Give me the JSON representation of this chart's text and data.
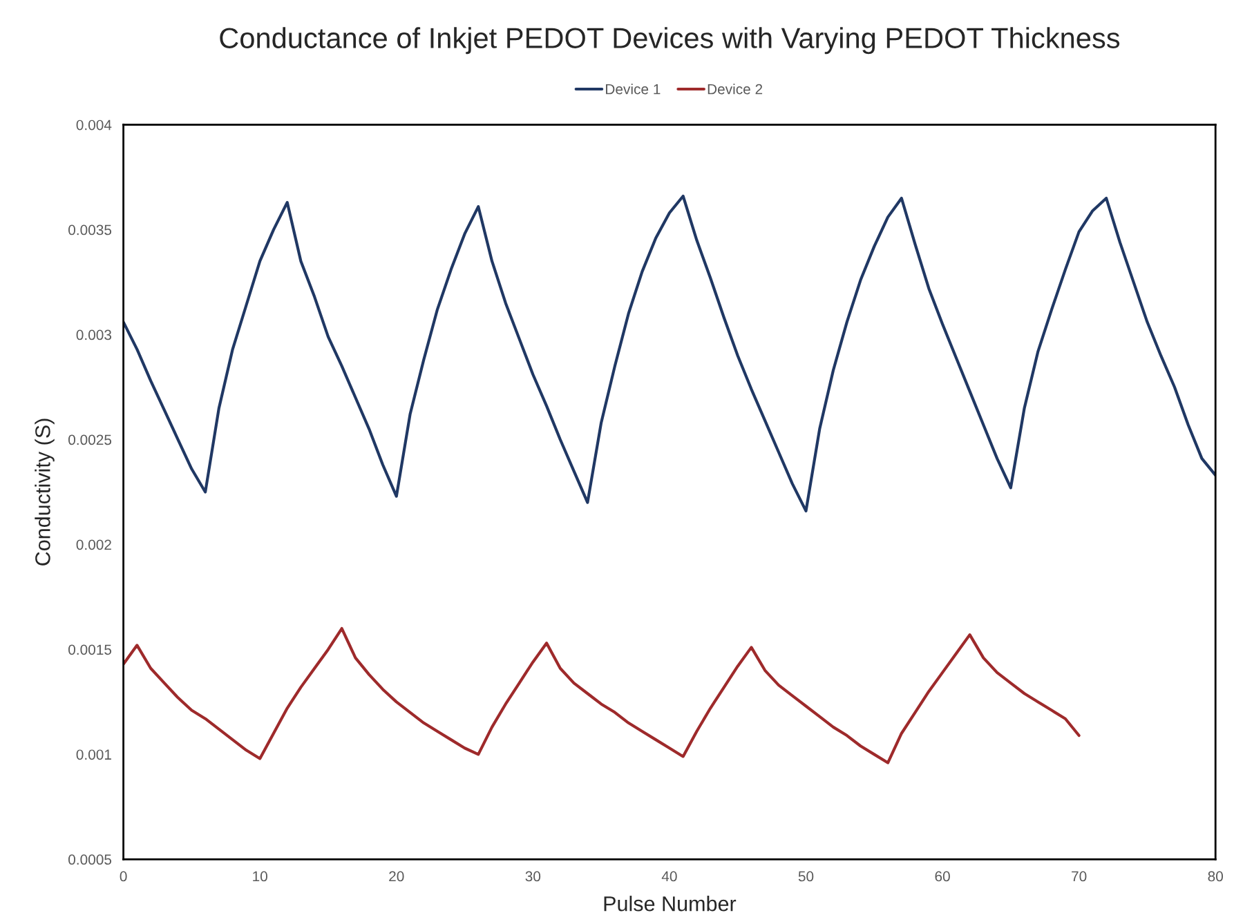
{
  "chart_data": {
    "type": "line",
    "title": "Conductance of Inkjet PEDOT Devices with Varying PEDOT Thickness",
    "xlabel": "Pulse Number",
    "ylabel": "Conductivity (S)",
    "xlim": [
      0,
      80
    ],
    "xticks": [
      0,
      10,
      20,
      30,
      40,
      50,
      60,
      70,
      80
    ],
    "ylim": [
      0.0005,
      0.004
    ],
    "yticks": [
      0.0005,
      0.001,
      0.0015,
      0.002,
      0.0025,
      0.003,
      0.0035,
      0.004
    ],
    "grid": false,
    "legend": "top",
    "marker": "none",
    "line_style": "solid",
    "series": [
      {
        "name": "Device 1",
        "color": "#203864",
        "x": [
          0,
          1,
          2,
          3,
          4,
          5,
          6,
          7,
          8,
          9,
          10,
          11,
          12,
          13,
          14,
          15,
          16,
          17,
          18,
          19,
          20,
          21,
          22,
          23,
          24,
          25,
          26,
          27,
          28,
          29,
          30,
          31,
          32,
          33,
          34,
          35,
          36,
          37,
          38,
          39,
          40,
          41,
          42,
          43,
          44,
          45,
          46,
          47,
          48,
          49,
          50,
          51,
          52,
          53,
          54,
          55,
          56,
          57,
          58,
          59,
          60,
          61,
          62,
          63,
          64,
          65,
          66,
          67,
          68,
          69,
          70,
          71,
          72,
          73,
          74,
          75,
          76,
          77,
          78,
          79,
          80
        ],
        "values": [
          0.00306,
          0.00293,
          0.00278,
          0.00264,
          0.0025,
          0.00236,
          0.00225,
          0.00265,
          0.00293,
          0.00314,
          0.00335,
          0.0035,
          0.00363,
          0.00335,
          0.00318,
          0.00299,
          0.00285,
          0.0027,
          0.00255,
          0.00238,
          0.00223,
          0.00262,
          0.00288,
          0.00312,
          0.00331,
          0.00348,
          0.00361,
          0.00335,
          0.00315,
          0.00298,
          0.00281,
          0.00266,
          0.0025,
          0.00235,
          0.0022,
          0.00258,
          0.00285,
          0.0031,
          0.0033,
          0.00346,
          0.00358,
          0.00366,
          0.00345,
          0.00327,
          0.00308,
          0.0029,
          0.00274,
          0.00259,
          0.00244,
          0.00229,
          0.00216,
          0.00255,
          0.00283,
          0.00306,
          0.00326,
          0.00342,
          0.00356,
          0.00365,
          0.00343,
          0.00322,
          0.00305,
          0.00289,
          0.00273,
          0.00257,
          0.00241,
          0.00227,
          0.00265,
          0.00292,
          0.00312,
          0.00331,
          0.00349,
          0.00359,
          0.00365,
          0.00344,
          0.00325,
          0.00306,
          0.0029,
          0.00275,
          0.00257,
          0.00241,
          0.00233
        ]
      },
      {
        "name": "Device 2",
        "color": "#9e2a2b",
        "x": [
          0,
          1,
          2,
          3,
          4,
          5,
          6,
          7,
          8,
          9,
          10,
          11,
          12,
          13,
          14,
          15,
          16,
          17,
          18,
          19,
          20,
          21,
          22,
          23,
          24,
          25,
          26,
          27,
          28,
          29,
          30,
          31,
          32,
          33,
          34,
          35,
          36,
          37,
          38,
          39,
          40,
          41,
          42,
          43,
          44,
          45,
          46,
          47,
          48,
          49,
          50,
          51,
          52,
          53,
          54,
          55,
          56,
          57,
          58,
          59,
          60,
          61,
          62,
          63,
          64,
          65,
          66,
          67,
          68,
          69,
          70
        ],
        "values": [
          0.00143,
          0.00152,
          0.00141,
          0.00134,
          0.00127,
          0.00121,
          0.00117,
          0.00112,
          0.00107,
          0.00102,
          0.00098,
          0.0011,
          0.00122,
          0.00132,
          0.00141,
          0.0015,
          0.0016,
          0.00146,
          0.00138,
          0.00131,
          0.00125,
          0.0012,
          0.00115,
          0.00111,
          0.00107,
          0.00103,
          0.001,
          0.00113,
          0.00124,
          0.00134,
          0.00144,
          0.00153,
          0.00141,
          0.00134,
          0.00129,
          0.00124,
          0.0012,
          0.00115,
          0.00111,
          0.00107,
          0.00103,
          0.00099,
          0.00111,
          0.00122,
          0.00132,
          0.00142,
          0.00151,
          0.0014,
          0.00133,
          0.00128,
          0.00123,
          0.00118,
          0.00113,
          0.00109,
          0.00104,
          0.001,
          0.00096,
          0.0011,
          0.0012,
          0.0013,
          0.00139,
          0.00148,
          0.00157,
          0.00146,
          0.00139,
          0.00134,
          0.00129,
          0.00125,
          0.00121,
          0.00117,
          0.00109
        ]
      }
    ]
  }
}
